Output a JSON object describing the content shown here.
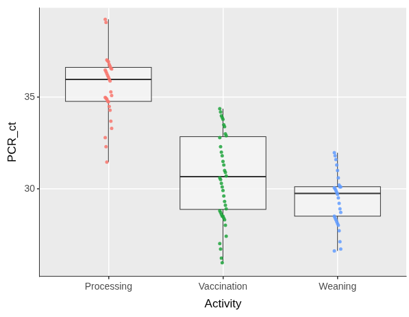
{
  "chart_data": {
    "type": "box",
    "x_label": "Activity",
    "y_label": "PCR_ct",
    "categories": [
      "Processing",
      "Vaccination",
      "Weaning"
    ],
    "colors": [
      "#f8766d",
      "#1fa33c",
      "#619cff"
    ],
    "boxes": [
      {
        "whisker_low": 31.46,
        "q1": 34.78,
        "median": 35.98,
        "q3": 36.64,
        "whisker_high": 39.27
      },
      {
        "whisker_low": 25.95,
        "q1": 28.87,
        "median": 30.66,
        "q3": 32.85,
        "whisker_high": 34.38
      },
      {
        "whisker_low": 26.6,
        "q1": 28.5,
        "median": 29.74,
        "q3": 30.11,
        "whisker_high": 31.97
      }
    ],
    "points": [
      [
        39.27,
        39.1,
        37.05,
        37.0,
        36.95,
        36.8,
        36.7,
        36.6,
        36.55,
        36.5,
        36.4,
        36.3,
        36.2,
        36.1,
        36.0,
        35.9,
        35.3,
        35.1,
        35.0,
        34.95,
        34.9,
        34.8,
        34.75,
        34.5,
        34.3,
        33.7,
        33.3,
        32.8,
        32.3,
        31.46
      ],
      [
        34.38,
        34.2,
        34.0,
        33.9,
        33.8,
        33.5,
        33.4,
        33.0,
        32.9,
        32.8,
        32.3,
        32.0,
        31.8,
        31.5,
        31.3,
        31.0,
        30.9,
        30.7,
        30.6,
        30.5,
        30.3,
        30.1,
        29.9,
        29.6,
        29.3,
        29.1,
        28.9,
        28.8,
        28.7,
        28.6,
        28.5,
        28.5,
        28.4,
        28.3,
        28.0,
        27.4,
        27.0,
        26.7,
        26.2,
        25.95
      ],
      [
        31.97,
        31.8,
        31.6,
        31.3,
        31.0,
        30.6,
        30.2,
        30.1,
        30.1,
        30.05,
        30.0,
        29.9,
        29.8,
        29.7,
        29.5,
        29.2,
        28.9,
        28.7,
        28.5,
        28.4,
        28.3,
        28.2,
        28.1,
        28.0,
        27.7,
        27.1,
        26.7,
        26.6
      ]
    ],
    "ylim": [
      25.2,
      39.9
    ],
    "yticks": [
      30,
      35
    ],
    "grid": true
  }
}
